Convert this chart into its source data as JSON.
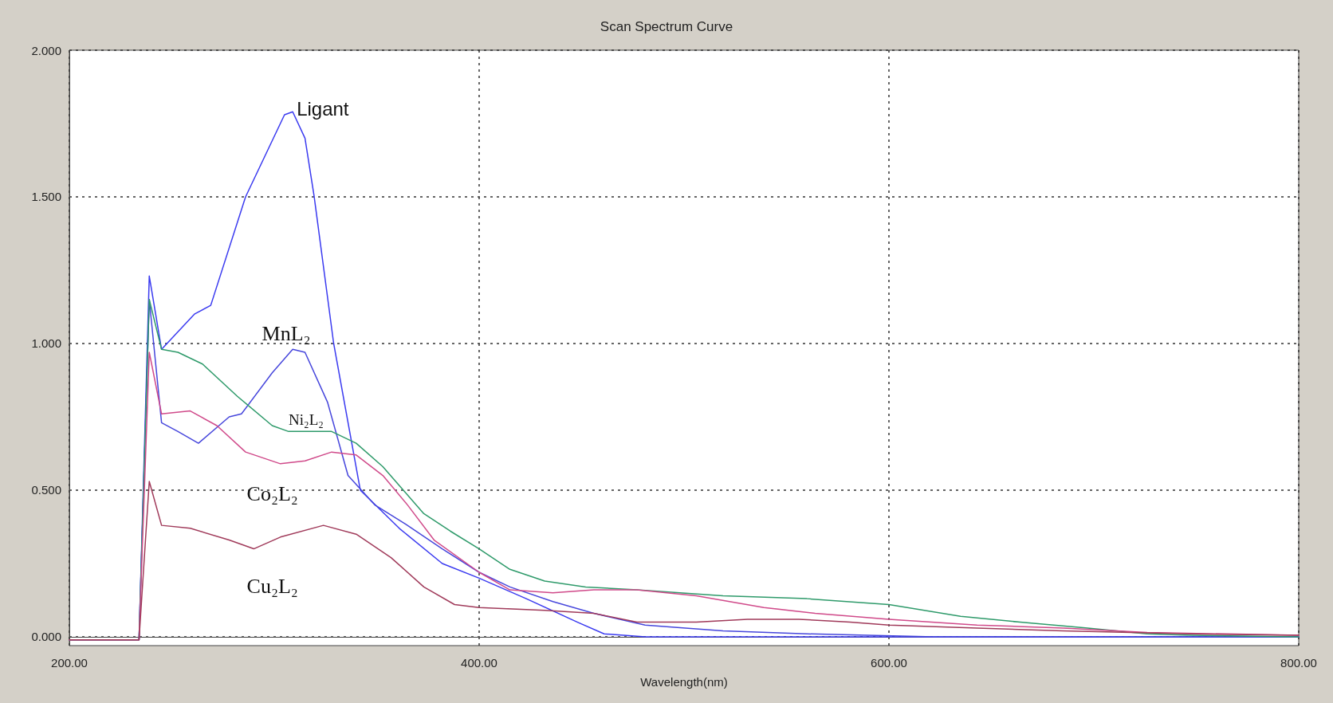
{
  "chart_data": {
    "type": "line",
    "title": "Scan Spectrum Curve",
    "xlabel": "Wavelength(nm)",
    "series": [
      {
        "name": "Ligant",
        "color": "#3a3af0",
        "x": [
          200,
          234,
          239,
          245,
          261,
          269,
          286,
          305,
          309,
          315,
          319.5,
          329,
          342,
          361,
          382,
          400,
          423,
          448,
          461,
          481,
          800
        ],
        "values": [
          -0.01,
          -0.01,
          1.23,
          0.98,
          1.1,
          1.13,
          1.5,
          1.78,
          1.79,
          1.7,
          1.5,
          1.0,
          0.5,
          0.37,
          0.25,
          0.2,
          0.13,
          0.05,
          0.01,
          0,
          0
        ]
      },
      {
        "name": "MnL₂",
        "color": "#4646dc",
        "x": [
          200,
          234,
          239,
          245,
          253,
          263,
          278,
          284,
          299,
          309,
          315,
          326,
          336,
          349,
          365,
          382,
          400,
          415,
          436,
          456,
          481,
          519,
          560,
          622,
          800
        ],
        "values": [
          -0.01,
          -0.01,
          1.15,
          0.73,
          0.7,
          0.66,
          0.75,
          0.76,
          0.9,
          0.98,
          0.97,
          0.8,
          0.55,
          0.45,
          0.38,
          0.3,
          0.22,
          0.17,
          0.12,
          0.08,
          0.04,
          0.02,
          0.01,
          0,
          0
        ]
      },
      {
        "name": "Ni₂L₂",
        "color": "#2e9a6a",
        "x": [
          200,
          234,
          239,
          245,
          253,
          265,
          282,
          299,
          307,
          328,
          340,
          353,
          363,
          373,
          386,
          400,
          415,
          432,
          452,
          477,
          519,
          560,
          600,
          635,
          664,
          697,
          726,
          747,
          800
        ],
        "values": [
          -0.01,
          -0.01,
          1.15,
          0.98,
          0.97,
          0.93,
          0.82,
          0.72,
          0.7,
          0.7,
          0.66,
          0.58,
          0.5,
          0.42,
          0.36,
          0.3,
          0.23,
          0.19,
          0.17,
          0.16,
          0.14,
          0.13,
          0.11,
          0.07,
          0.05,
          0.03,
          0.01,
          0.005,
          0
        ]
      },
      {
        "name": "Co₂L₂",
        "color": "#d04a8a",
        "x": [
          200,
          234,
          239,
          245,
          259,
          272,
          286,
          303,
          315,
          328,
          340,
          353,
          365,
          378,
          400,
          415,
          436,
          456,
          477,
          506,
          539,
          564,
          600,
          643,
          685,
          726,
          800
        ],
        "values": [
          -0.01,
          -0.01,
          0.97,
          0.76,
          0.77,
          0.72,
          0.63,
          0.59,
          0.6,
          0.63,
          0.62,
          0.55,
          0.45,
          0.33,
          0.22,
          0.16,
          0.15,
          0.16,
          0.16,
          0.14,
          0.1,
          0.08,
          0.06,
          0.04,
          0.03,
          0.015,
          0.005
        ]
      },
      {
        "name": "Cu₂L₂",
        "color": "#a03a5a",
        "x": [
          200,
          234,
          239,
          245,
          259,
          278,
          290,
          303,
          324,
          340,
          357,
          373,
          388,
          400,
          432,
          456,
          477,
          506,
          531,
          556,
          581,
          600,
          643,
          685,
          747,
          800
        ],
        "values": [
          -0.01,
          -0.01,
          0.53,
          0.38,
          0.37,
          0.33,
          0.3,
          0.34,
          0.38,
          0.35,
          0.27,
          0.17,
          0.11,
          0.1,
          0.09,
          0.08,
          0.05,
          0.05,
          0.06,
          0.06,
          0.05,
          0.04,
          0.03,
          0.02,
          0.01,
          0.005
        ]
      }
    ],
    "xlim": [
      200,
      800
    ],
    "xticks": [
      {
        "value": 200,
        "label": "200.00"
      },
      {
        "value": 400,
        "label": "400.00"
      },
      {
        "value": 600,
        "label": "600.00"
      },
      {
        "value": 800,
        "label": "800.00"
      }
    ],
    "ylim": [
      -0.03,
      2
    ],
    "yticks": [
      {
        "value": 0,
        "label": "0.000"
      },
      {
        "value": 0.5,
        "label": "0.500"
      },
      {
        "value": 1,
        "label": "1.000"
      },
      {
        "value": 1.5,
        "label": "1.500"
      },
      {
        "value": 2,
        "label": "2.000"
      }
    ],
    "grid": true,
    "marker": "none",
    "line_style": "solid",
    "legend": false
  }
}
